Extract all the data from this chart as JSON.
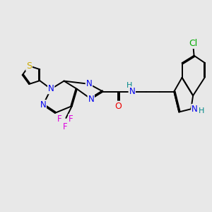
{
  "bg_color": "#e8e8e8",
  "bond_color": "#000000",
  "bond_width": 1.4,
  "atom_colors": {
    "N": "#0000ee",
    "O": "#ee0000",
    "S": "#ccaa00",
    "F": "#dd00dd",
    "Cl": "#00aa00",
    "NH": "#008888",
    "C": "#000000"
  },
  "font_size": 8.5,
  "fig_width": 3.0,
  "fig_height": 3.0,
  "dpi": 100
}
